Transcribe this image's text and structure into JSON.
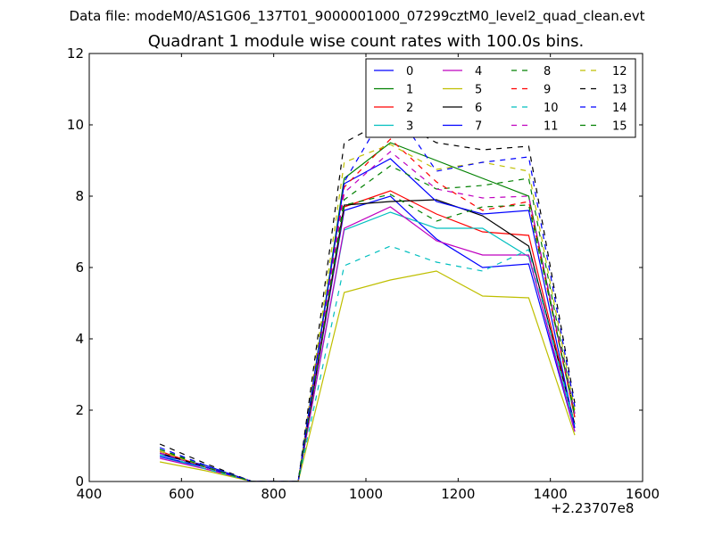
{
  "suptitle": "Data file: modeM0/AS1G06_137T01_9000001000_07299cztM0_level2_quad_clean.evt",
  "chart_data": {
    "type": "line",
    "title": "Quadrant 1 module wise count rates with 100.0s bins.",
    "xlabel": "",
    "ylabel": "",
    "x_offset_label": "+2.23707e8",
    "xlim": [
      400,
      1600
    ],
    "ylim": [
      0,
      12
    ],
    "xticks": [
      "400",
      "600",
      "800",
      "1000",
      "1200",
      "1400",
      "1600"
    ],
    "yticks": [
      "0",
      "2",
      "4",
      "6",
      "8",
      "10",
      "12"
    ],
    "grid": false,
    "legend_position": "top-right",
    "x": [
      553,
      653,
      753,
      853,
      953,
      1053,
      1153,
      1253,
      1353,
      1453
    ],
    "series": [
      {
        "name": "0",
        "color": "#0000ff",
        "dash": false,
        "values": [
          0.75,
          0.45,
          0,
          0,
          7.6,
          8.0,
          6.8,
          6.0,
          6.1,
          1.4
        ]
      },
      {
        "name": "1",
        "color": "#008000",
        "dash": false,
        "values": [
          0.8,
          0.4,
          0,
          0,
          8.5,
          9.5,
          9.0,
          8.5,
          8.0,
          1.8
        ]
      },
      {
        "name": "2",
        "color": "#ff0000",
        "dash": false,
        "values": [
          0.85,
          0.4,
          0,
          0,
          7.7,
          8.15,
          7.5,
          7.0,
          6.9,
          1.6
        ]
      },
      {
        "name": "3",
        "color": "#00bfbf",
        "dash": false,
        "values": [
          0.7,
          0.35,
          0,
          0,
          7.05,
          7.55,
          7.1,
          7.1,
          6.3,
          1.5
        ]
      },
      {
        "name": "4",
        "color": "#bf00bf",
        "dash": false,
        "values": [
          0.65,
          0.35,
          0,
          0,
          7.1,
          7.7,
          6.75,
          6.35,
          6.35,
          1.4
        ]
      },
      {
        "name": "5",
        "color": "#bfbf00",
        "dash": false,
        "values": [
          0.55,
          0.3,
          0,
          0,
          5.3,
          5.65,
          5.9,
          5.2,
          5.15,
          1.3
        ]
      },
      {
        "name": "6",
        "color": "#000000",
        "dash": false,
        "values": [
          0.8,
          0.4,
          0,
          0,
          7.75,
          7.85,
          7.9,
          7.45,
          6.6,
          1.6
        ]
      },
      {
        "name": "7",
        "color": "#0000ff",
        "dash": false,
        "values": [
          0.7,
          0.4,
          0,
          0,
          8.35,
          9.05,
          7.85,
          7.5,
          7.6,
          1.5
        ]
      },
      {
        "name": "8",
        "color": "#008000",
        "dash": true,
        "values": [
          0.9,
          0.45,
          0,
          0,
          7.9,
          8.85,
          8.2,
          8.3,
          8.5,
          1.9
        ]
      },
      {
        "name": "9",
        "color": "#ff0000",
        "dash": true,
        "values": [
          0.85,
          0.4,
          0,
          0,
          8.25,
          9.6,
          8.4,
          7.6,
          7.85,
          1.8
        ]
      },
      {
        "name": "10",
        "color": "#00bfbf",
        "dash": true,
        "values": [
          0.75,
          0.35,
          0,
          0,
          6.05,
          6.6,
          6.15,
          5.9,
          6.5,
          1.6
        ]
      },
      {
        "name": "11",
        "color": "#bf00bf",
        "dash": true,
        "values": [
          0.8,
          0.4,
          0,
          0,
          8.1,
          9.25,
          8.2,
          7.95,
          8.0,
          1.9
        ]
      },
      {
        "name": "12",
        "color": "#bfbf00",
        "dash": true,
        "values": [
          0.85,
          0.4,
          0,
          0,
          8.95,
          9.45,
          8.75,
          8.95,
          8.7,
          2.0
        ]
      },
      {
        "name": "13",
        "color": "#000000",
        "dash": true,
        "values": [
          1.05,
          0.5,
          0,
          0,
          9.5,
          10.2,
          9.5,
          9.3,
          9.4,
          2.2
        ]
      },
      {
        "name": "14",
        "color": "#0000ff",
        "dash": true,
        "values": [
          0.95,
          0.45,
          0,
          0,
          8.4,
          10.6,
          8.7,
          8.95,
          9.1,
          2.1
        ]
      },
      {
        "name": "15",
        "color": "#008000",
        "dash": true,
        "values": [
          0.9,
          0.4,
          0,
          0,
          7.75,
          8.05,
          7.3,
          7.7,
          7.75,
          1.9
        ]
      }
    ]
  }
}
